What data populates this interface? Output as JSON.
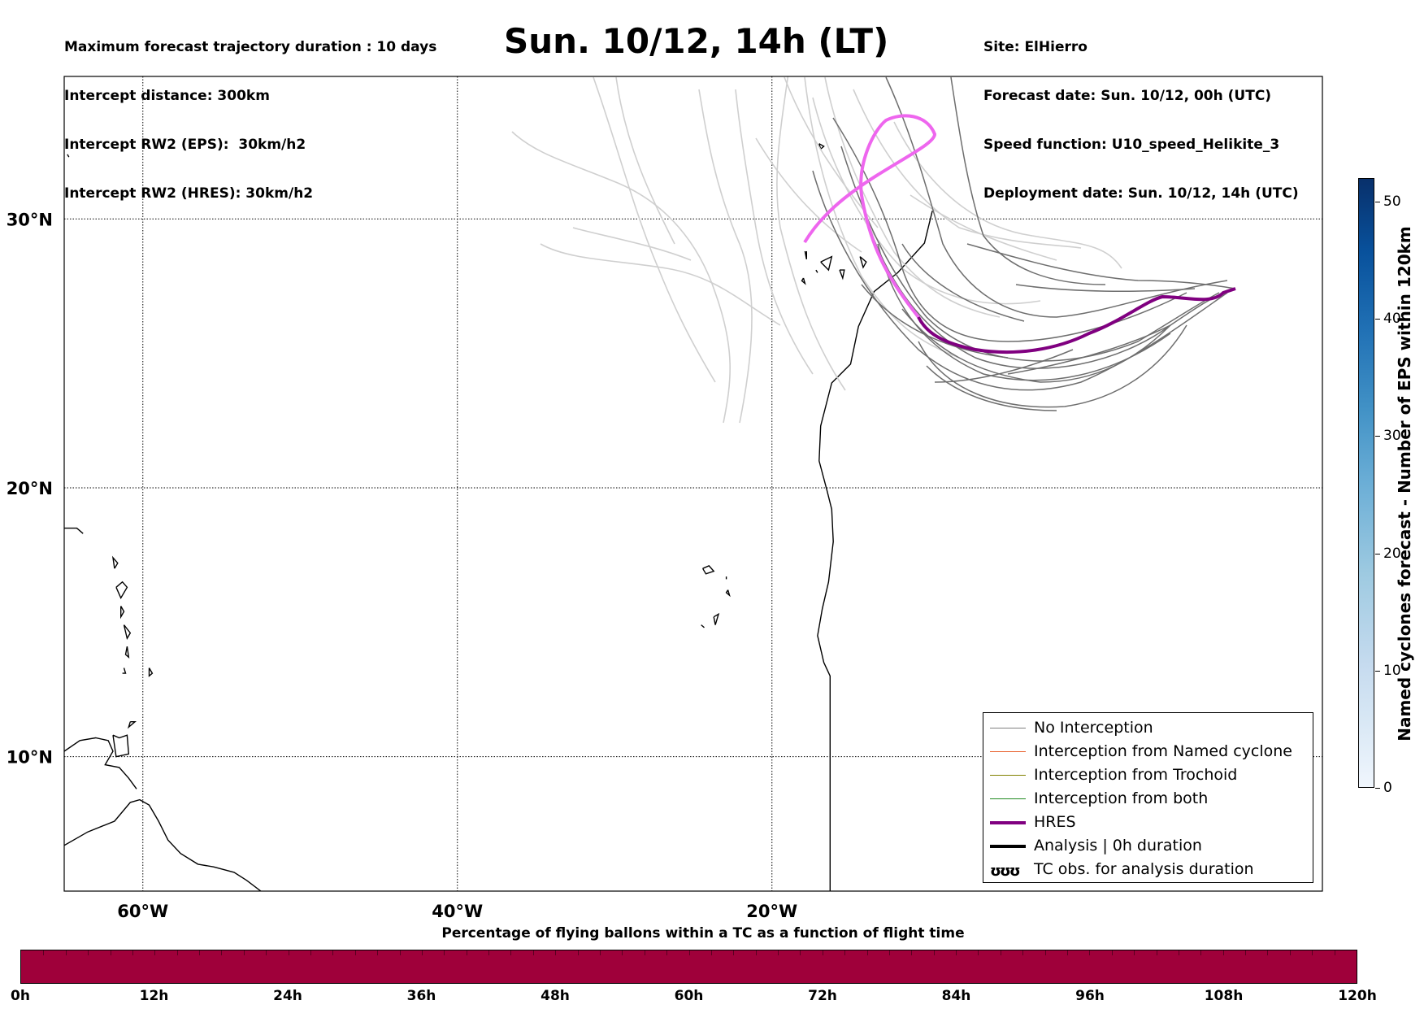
{
  "header_left": [
    "Maximum forecast trajectory duration : 10 days",
    "Intercept distance: 300km",
    "Intercept RW2 (EPS):  30km/h2",
    "Intercept RW2 (HRES): 30km/h2"
  ],
  "header_right": [
    "Site: ElHierro",
    "Forecast date: Sun. 10/12, 00h (UTC)",
    "Speed function: U10_speed_Helikite_3",
    "Deployment date: Sun. 10/12, 14h (UTC)"
  ],
  "title": "Sun. 10/12, 14h (LT)",
  "map": {
    "lon_range": [
      -65,
      15
    ],
    "lat_range": [
      5,
      35.3
    ],
    "lat_labels": [
      {
        "text": "30°N",
        "lat": 30
      },
      {
        "text": "20°N",
        "lat": 20
      },
      {
        "text": "10°N",
        "lat": 10
      }
    ],
    "lon_labels": [
      {
        "text": "60°W",
        "lon": -60
      },
      {
        "text": "40°W",
        "lon": -40
      },
      {
        "text": "20°W",
        "lon": -20
      }
    ],
    "grid": true,
    "colors": {
      "eps_no_interception": "#6e6e6e",
      "eps_light": "#cfcfcf",
      "hres": "#800080",
      "hres_extension": "#ee66ee",
      "coast": "#000000"
    }
  },
  "legend": {
    "placement": "lower-right",
    "items": [
      {
        "label": "No Interception",
        "color": "#808080"
      },
      {
        "label": "Interception from Named cyclone",
        "color": "#e8602c"
      },
      {
        "label": "Interception from Trochoid",
        "color": "#808000"
      },
      {
        "label": "Interception from both",
        "color": "#228b22"
      },
      {
        "label": "HRES",
        "color": "#800080"
      },
      {
        "label": "Analysis | 0h duration",
        "color": "#000000"
      },
      {
        "label": "TC obs. for analysis duration",
        "color": "#000000",
        "glyph": "ʊʊʊ"
      }
    ]
  },
  "colorbar_right": {
    "label": "Named cyclones forecast - Number of EPS within 120km",
    "ticks": [
      "0",
      "10",
      "20",
      "30",
      "40",
      "50"
    ],
    "range": [
      0,
      52
    ]
  },
  "colorbar_bottom": {
    "caption": "Percentage of flying ballons within a TC as a function of flight time",
    "ticks": [
      "0h",
      "12h",
      "24h",
      "36h",
      "48h",
      "60h",
      "72h",
      "84h",
      "96h",
      "108h",
      "120h"
    ],
    "color": "#9f003a"
  }
}
